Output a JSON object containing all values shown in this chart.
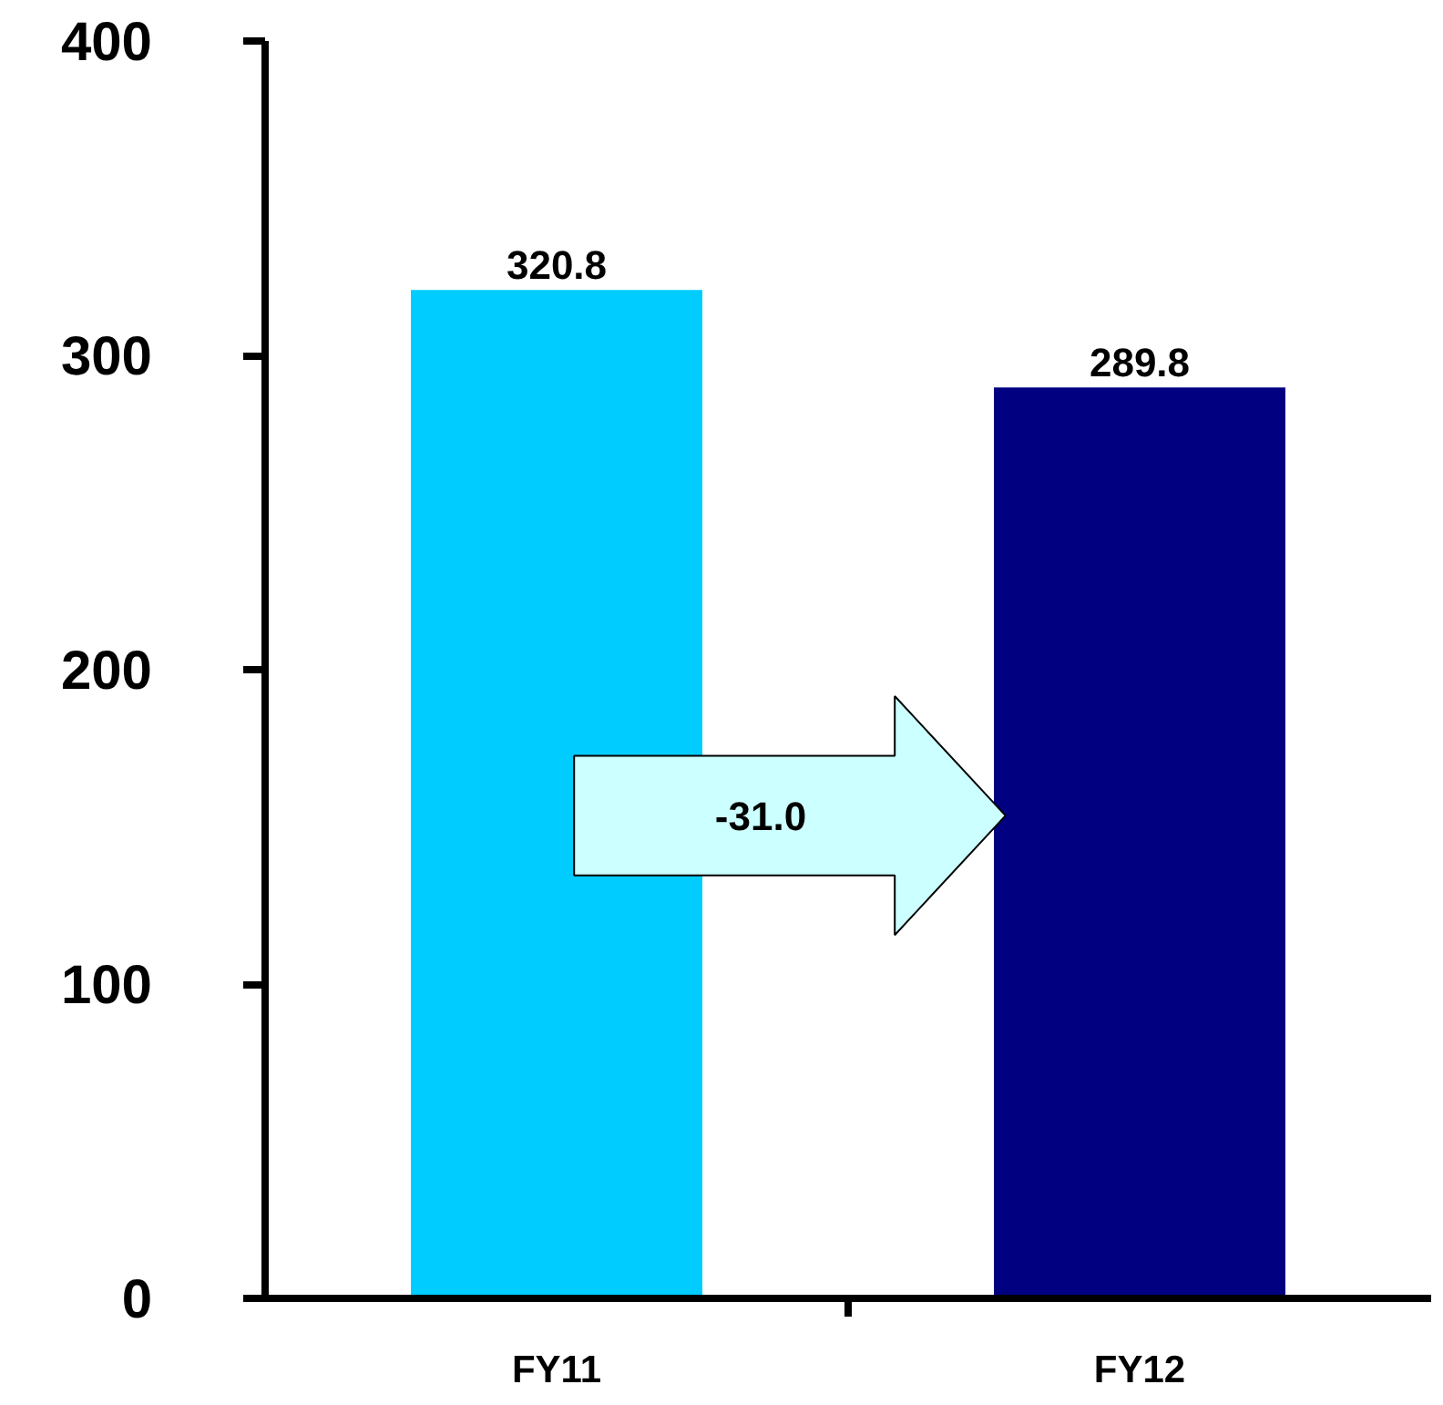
{
  "chart_data": {
    "type": "bar",
    "categories": [
      "FY11",
      "FY12"
    ],
    "colors": [
      "#00ccff",
      "#000080"
    ],
    "values": [
      320.8,
      289.8
    ],
    "data_labels": true,
    "ylim": [
      0,
      400
    ],
    "yticks": [
      0,
      100,
      200,
      300,
      400
    ],
    "grid": false,
    "annotations": [
      "-31.0"
    ]
  }
}
